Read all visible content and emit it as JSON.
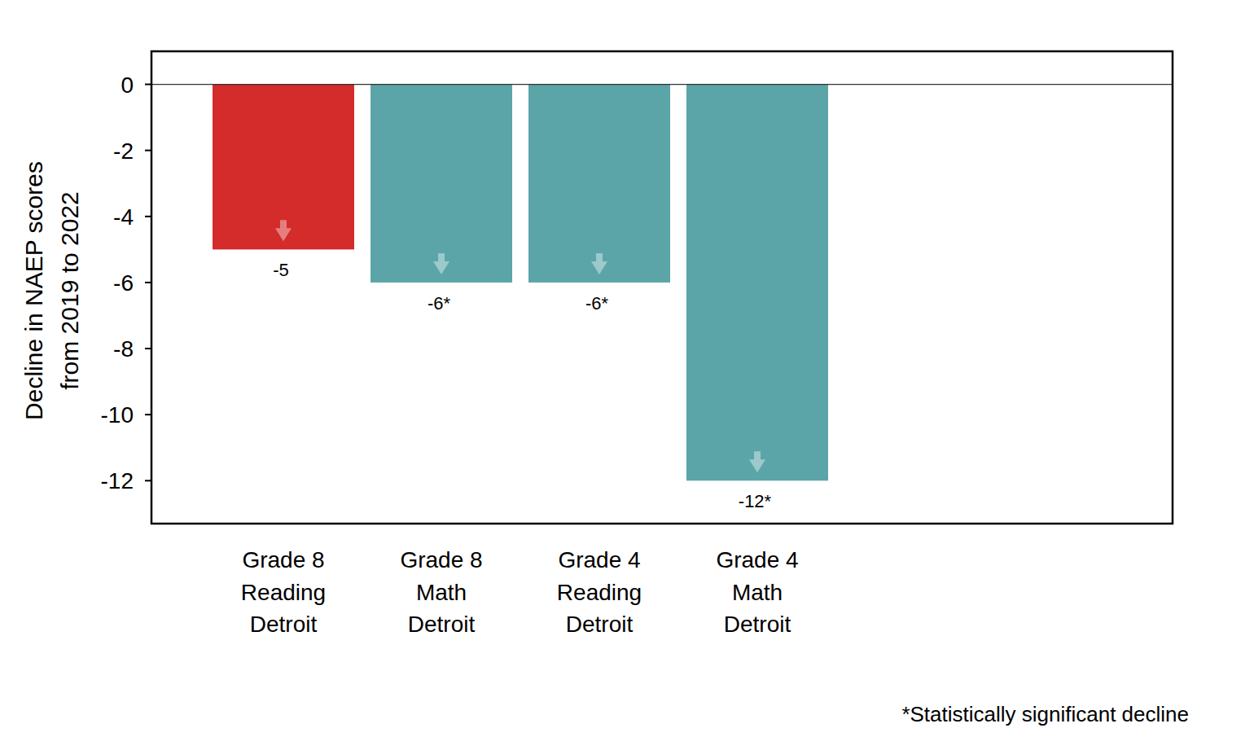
{
  "chart_data": {
    "type": "bar",
    "y_label": [
      "Decline in NAEP scores",
      "from 2019 to 2022"
    ],
    "categories": [
      "Grade 8\nReading\nDetroit",
      "Grade 8\nMath\nDetroit",
      "Grade 4\nReading\nDetroit",
      "Grade 4\nMath\nDetroit"
    ],
    "values": [
      -5,
      -6,
      -6,
      -12
    ],
    "value_labels": [
      "-5",
      "-6*",
      "-6*",
      "-12*"
    ],
    "colors": [
      "#d42b2b",
      "#5ba5a8",
      "#5ba5a8",
      "#5ba5a8"
    ],
    "data_labels": true,
    "ylim": [
      -13.3,
      1
    ],
    "yticks": [
      0,
      -2,
      -4,
      -6,
      -8,
      -10,
      -12
    ],
    "grid": false,
    "annotations": [
      "*Statistically significant decline"
    ]
  }
}
